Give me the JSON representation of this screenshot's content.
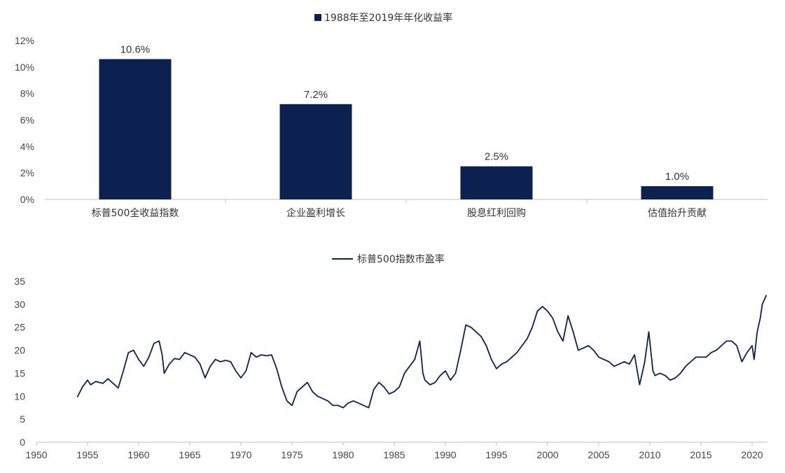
{
  "accent_color": "#0d2150",
  "chart_data": [
    {
      "type": "bar",
      "legend": "1988年至2019年年化收益率",
      "legend_position": "top-center",
      "categories": [
        "标普500全收益指数",
        "企业盈利增长",
        "股息红利回购",
        "估值抬升贡献"
      ],
      "values": [
        10.6,
        7.2,
        2.5,
        1.0
      ],
      "data_labels": [
        "10.6%",
        "7.2%",
        "2.5%",
        "1.0%"
      ],
      "ylim": [
        0,
        12
      ],
      "yticks": [
        "0%",
        "2%",
        "4%",
        "6%",
        "8%",
        "10%",
        "12%"
      ],
      "grid": false
    },
    {
      "type": "line",
      "legend": "标普500指数市盈率",
      "legend_position": "top-center",
      "xlim": [
        1950,
        2021.5
      ],
      "ylim": [
        0,
        35
      ],
      "xticks": [
        "1950",
        "1955",
        "1960",
        "1965",
        "1970",
        "1975",
        "1980",
        "1985",
        "1990",
        "1995",
        "2000",
        "2005",
        "2010",
        "2015",
        "2020"
      ],
      "yticks": [
        "0",
        "5",
        "10",
        "15",
        "20",
        "25",
        "30",
        "35"
      ],
      "grid": false,
      "series": [
        {
          "points": [
            [
              1954.0,
              9.8
            ],
            [
              1954.5,
              12.0
            ],
            [
              1955.0,
              13.5
            ],
            [
              1955.3,
              12.5
            ],
            [
              1955.8,
              13.2
            ],
            [
              1956.5,
              12.8
            ],
            [
              1957.0,
              13.8
            ],
            [
              1957.5,
              12.8
            ],
            [
              1958.0,
              11.8
            ],
            [
              1958.5,
              15.5
            ],
            [
              1959.0,
              19.5
            ],
            [
              1959.5,
              20.0
            ],
            [
              1960.0,
              18.0
            ],
            [
              1960.5,
              16.5
            ],
            [
              1961.0,
              18.5
            ],
            [
              1961.5,
              21.5
            ],
            [
              1962.0,
              22.0
            ],
            [
              1962.3,
              19.0
            ],
            [
              1962.5,
              15.0
            ],
            [
              1963.0,
              17.0
            ],
            [
              1963.5,
              18.2
            ],
            [
              1964.0,
              18.0
            ],
            [
              1964.5,
              19.5
            ],
            [
              1965.0,
              19.0
            ],
            [
              1965.5,
              18.5
            ],
            [
              1966.0,
              17.0
            ],
            [
              1966.5,
              14.0
            ],
            [
              1967.0,
              16.5
            ],
            [
              1967.5,
              18.0
            ],
            [
              1968.0,
              17.5
            ],
            [
              1968.5,
              17.8
            ],
            [
              1969.0,
              17.5
            ],
            [
              1969.5,
              15.5
            ],
            [
              1970.0,
              14.0
            ],
            [
              1970.5,
              15.5
            ],
            [
              1971.0,
              19.5
            ],
            [
              1971.5,
              18.5
            ],
            [
              1972.0,
              19.0
            ],
            [
              1972.5,
              18.8
            ],
            [
              1973.0,
              19.0
            ],
            [
              1973.5,
              16.0
            ],
            [
              1974.0,
              12.0
            ],
            [
              1974.5,
              9.0
            ],
            [
              1975.0,
              8.0
            ],
            [
              1975.5,
              11.0
            ],
            [
              1976.0,
              12.0
            ],
            [
              1976.5,
              13.0
            ],
            [
              1977.0,
              11.0
            ],
            [
              1977.5,
              10.0
            ],
            [
              1978.0,
              9.5
            ],
            [
              1978.5,
              9.0
            ],
            [
              1979.0,
              8.0
            ],
            [
              1979.5,
              8.0
            ],
            [
              1980.0,
              7.5
            ],
            [
              1980.5,
              8.5
            ],
            [
              1981.0,
              9.0
            ],
            [
              1981.5,
              8.5
            ],
            [
              1982.0,
              8.0
            ],
            [
              1982.5,
              7.5
            ],
            [
              1983.0,
              11.5
            ],
            [
              1983.5,
              13.0
            ],
            [
              1984.0,
              12.0
            ],
            [
              1984.5,
              10.5
            ],
            [
              1985.0,
              11.0
            ],
            [
              1985.5,
              12.0
            ],
            [
              1986.0,
              15.0
            ],
            [
              1986.5,
              16.5
            ],
            [
              1987.0,
              18.0
            ],
            [
              1987.5,
              22.0
            ],
            [
              1987.8,
              15.0
            ],
            [
              1988.0,
              13.5
            ],
            [
              1988.5,
              12.5
            ],
            [
              1989.0,
              13.0
            ],
            [
              1989.5,
              14.5
            ],
            [
              1990.0,
              15.5
            ],
            [
              1990.5,
              13.5
            ],
            [
              1991.0,
              15.0
            ],
            [
              1991.5,
              20.0
            ],
            [
              1992.0,
              25.5
            ],
            [
              1992.5,
              25.0
            ],
            [
              1993.0,
              24.0
            ],
            [
              1993.5,
              23.0
            ],
            [
              1994.0,
              21.0
            ],
            [
              1994.5,
              18.0
            ],
            [
              1995.0,
              16.0
            ],
            [
              1995.5,
              17.0
            ],
            [
              1996.0,
              17.5
            ],
            [
              1996.5,
              18.5
            ],
            [
              1997.0,
              19.5
            ],
            [
              1997.5,
              21.0
            ],
            [
              1998.0,
              22.5
            ],
            [
              1998.5,
              25.0
            ],
            [
              1999.0,
              28.5
            ],
            [
              1999.5,
              29.5
            ],
            [
              2000.0,
              28.5
            ],
            [
              2000.5,
              27.0
            ],
            [
              2001.0,
              24.0
            ],
            [
              2001.5,
              22.0
            ],
            [
              2002.0,
              27.5
            ],
            [
              2002.5,
              24.0
            ],
            [
              2003.0,
              20.0
            ],
            [
              2003.5,
              20.5
            ],
            [
              2004.0,
              21.0
            ],
            [
              2004.5,
              20.0
            ],
            [
              2005.0,
              18.5
            ],
            [
              2005.5,
              18.0
            ],
            [
              2006.0,
              17.5
            ],
            [
              2006.5,
              16.5
            ],
            [
              2007.0,
              17.0
            ],
            [
              2007.5,
              17.5
            ],
            [
              2008.0,
              17.0
            ],
            [
              2008.5,
              19.0
            ],
            [
              2009.0,
              12.5
            ],
            [
              2009.5,
              17.5
            ],
            [
              2009.9,
              24.0
            ],
            [
              2010.3,
              15.5
            ],
            [
              2010.5,
              14.5
            ],
            [
              2011.0,
              15.0
            ],
            [
              2011.5,
              14.5
            ],
            [
              2012.0,
              13.5
            ],
            [
              2012.5,
              14.0
            ],
            [
              2013.0,
              15.0
            ],
            [
              2013.5,
              16.5
            ],
            [
              2014.0,
              17.5
            ],
            [
              2014.5,
              18.5
            ],
            [
              2015.0,
              18.5
            ],
            [
              2015.5,
              18.5
            ],
            [
              2016.0,
              19.5
            ],
            [
              2016.5,
              20.0
            ],
            [
              2017.0,
              21.0
            ],
            [
              2017.5,
              22.0
            ],
            [
              2018.0,
              22.0
            ],
            [
              2018.5,
              21.0
            ],
            [
              2019.0,
              17.5
            ],
            [
              2019.5,
              19.5
            ],
            [
              2020.0,
              21.0
            ],
            [
              2020.2,
              18.0
            ],
            [
              2020.5,
              24.0
            ],
            [
              2020.8,
              27.0
            ],
            [
              2021.0,
              30.0
            ],
            [
              2021.4,
              32.0
            ]
          ]
        }
      ]
    }
  ]
}
